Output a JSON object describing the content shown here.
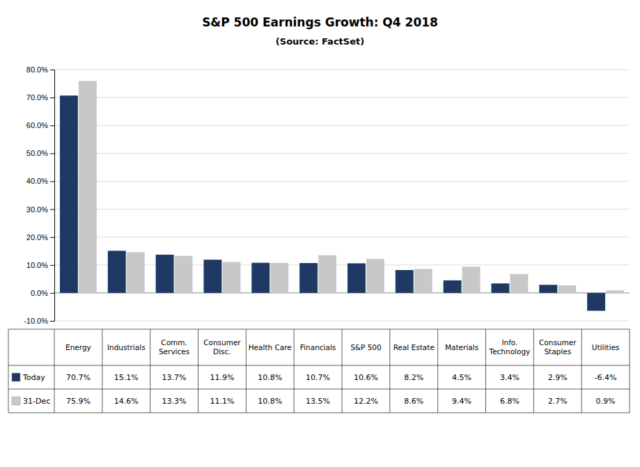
{
  "chart_data": {
    "type": "bar",
    "title": "S&P 500 Earnings Growth:  Q4 2018",
    "subtitle": "(Source: FactSet)",
    "categories": [
      "Energy",
      "Industrials",
      "Comm.\nServices",
      "Consumer\nDisc.",
      "Health Care",
      "Financials",
      "S&P 500",
      "Real Estate",
      "Materials",
      "Info.\nTechnology",
      "Consumer\nStaples",
      "Utilities"
    ],
    "series": [
      {
        "name": "Today",
        "color": "#1F3864",
        "values": [
          70.7,
          15.1,
          13.7,
          11.9,
          10.8,
          10.7,
          10.6,
          8.2,
          4.5,
          3.4,
          2.9,
          -6.4
        ],
        "value_labels": [
          "70.7%",
          "15.1%",
          "13.7%",
          "11.9%",
          "10.8%",
          "10.7%",
          "10.6%",
          "8.2%",
          "4.5%",
          "3.4%",
          "2.9%",
          "-6.4%"
        ]
      },
      {
        "name": "31-Dec",
        "color": "#C8C8C8",
        "values": [
          75.9,
          14.6,
          13.3,
          11.1,
          10.8,
          13.5,
          12.2,
          8.6,
          9.4,
          6.8,
          2.7,
          0.9
        ],
        "value_labels": [
          "75.9%",
          "14.6%",
          "13.3%",
          "11.1%",
          "10.8%",
          "13.5%",
          "12.2%",
          "8.6%",
          "9.4%",
          "6.8%",
          "2.7%",
          "0.9%"
        ]
      }
    ],
    "ylim": [
      -10,
      80
    ],
    "yticks": [
      {
        "value": -10,
        "label": "-10.0%"
      },
      {
        "value": 0,
        "label": "0.0%"
      },
      {
        "value": 10,
        "label": "10.0%"
      },
      {
        "value": 20,
        "label": "20.0%"
      },
      {
        "value": 30,
        "label": "30.0%"
      },
      {
        "value": 40,
        "label": "40.0%"
      },
      {
        "value": 50,
        "label": "50.0%"
      },
      {
        "value": 60,
        "label": "60.0%"
      },
      {
        "value": 70,
        "label": "70.0%"
      },
      {
        "value": 80,
        "label": "80.0%"
      }
    ],
    "grid": true,
    "data_labels": true
  }
}
